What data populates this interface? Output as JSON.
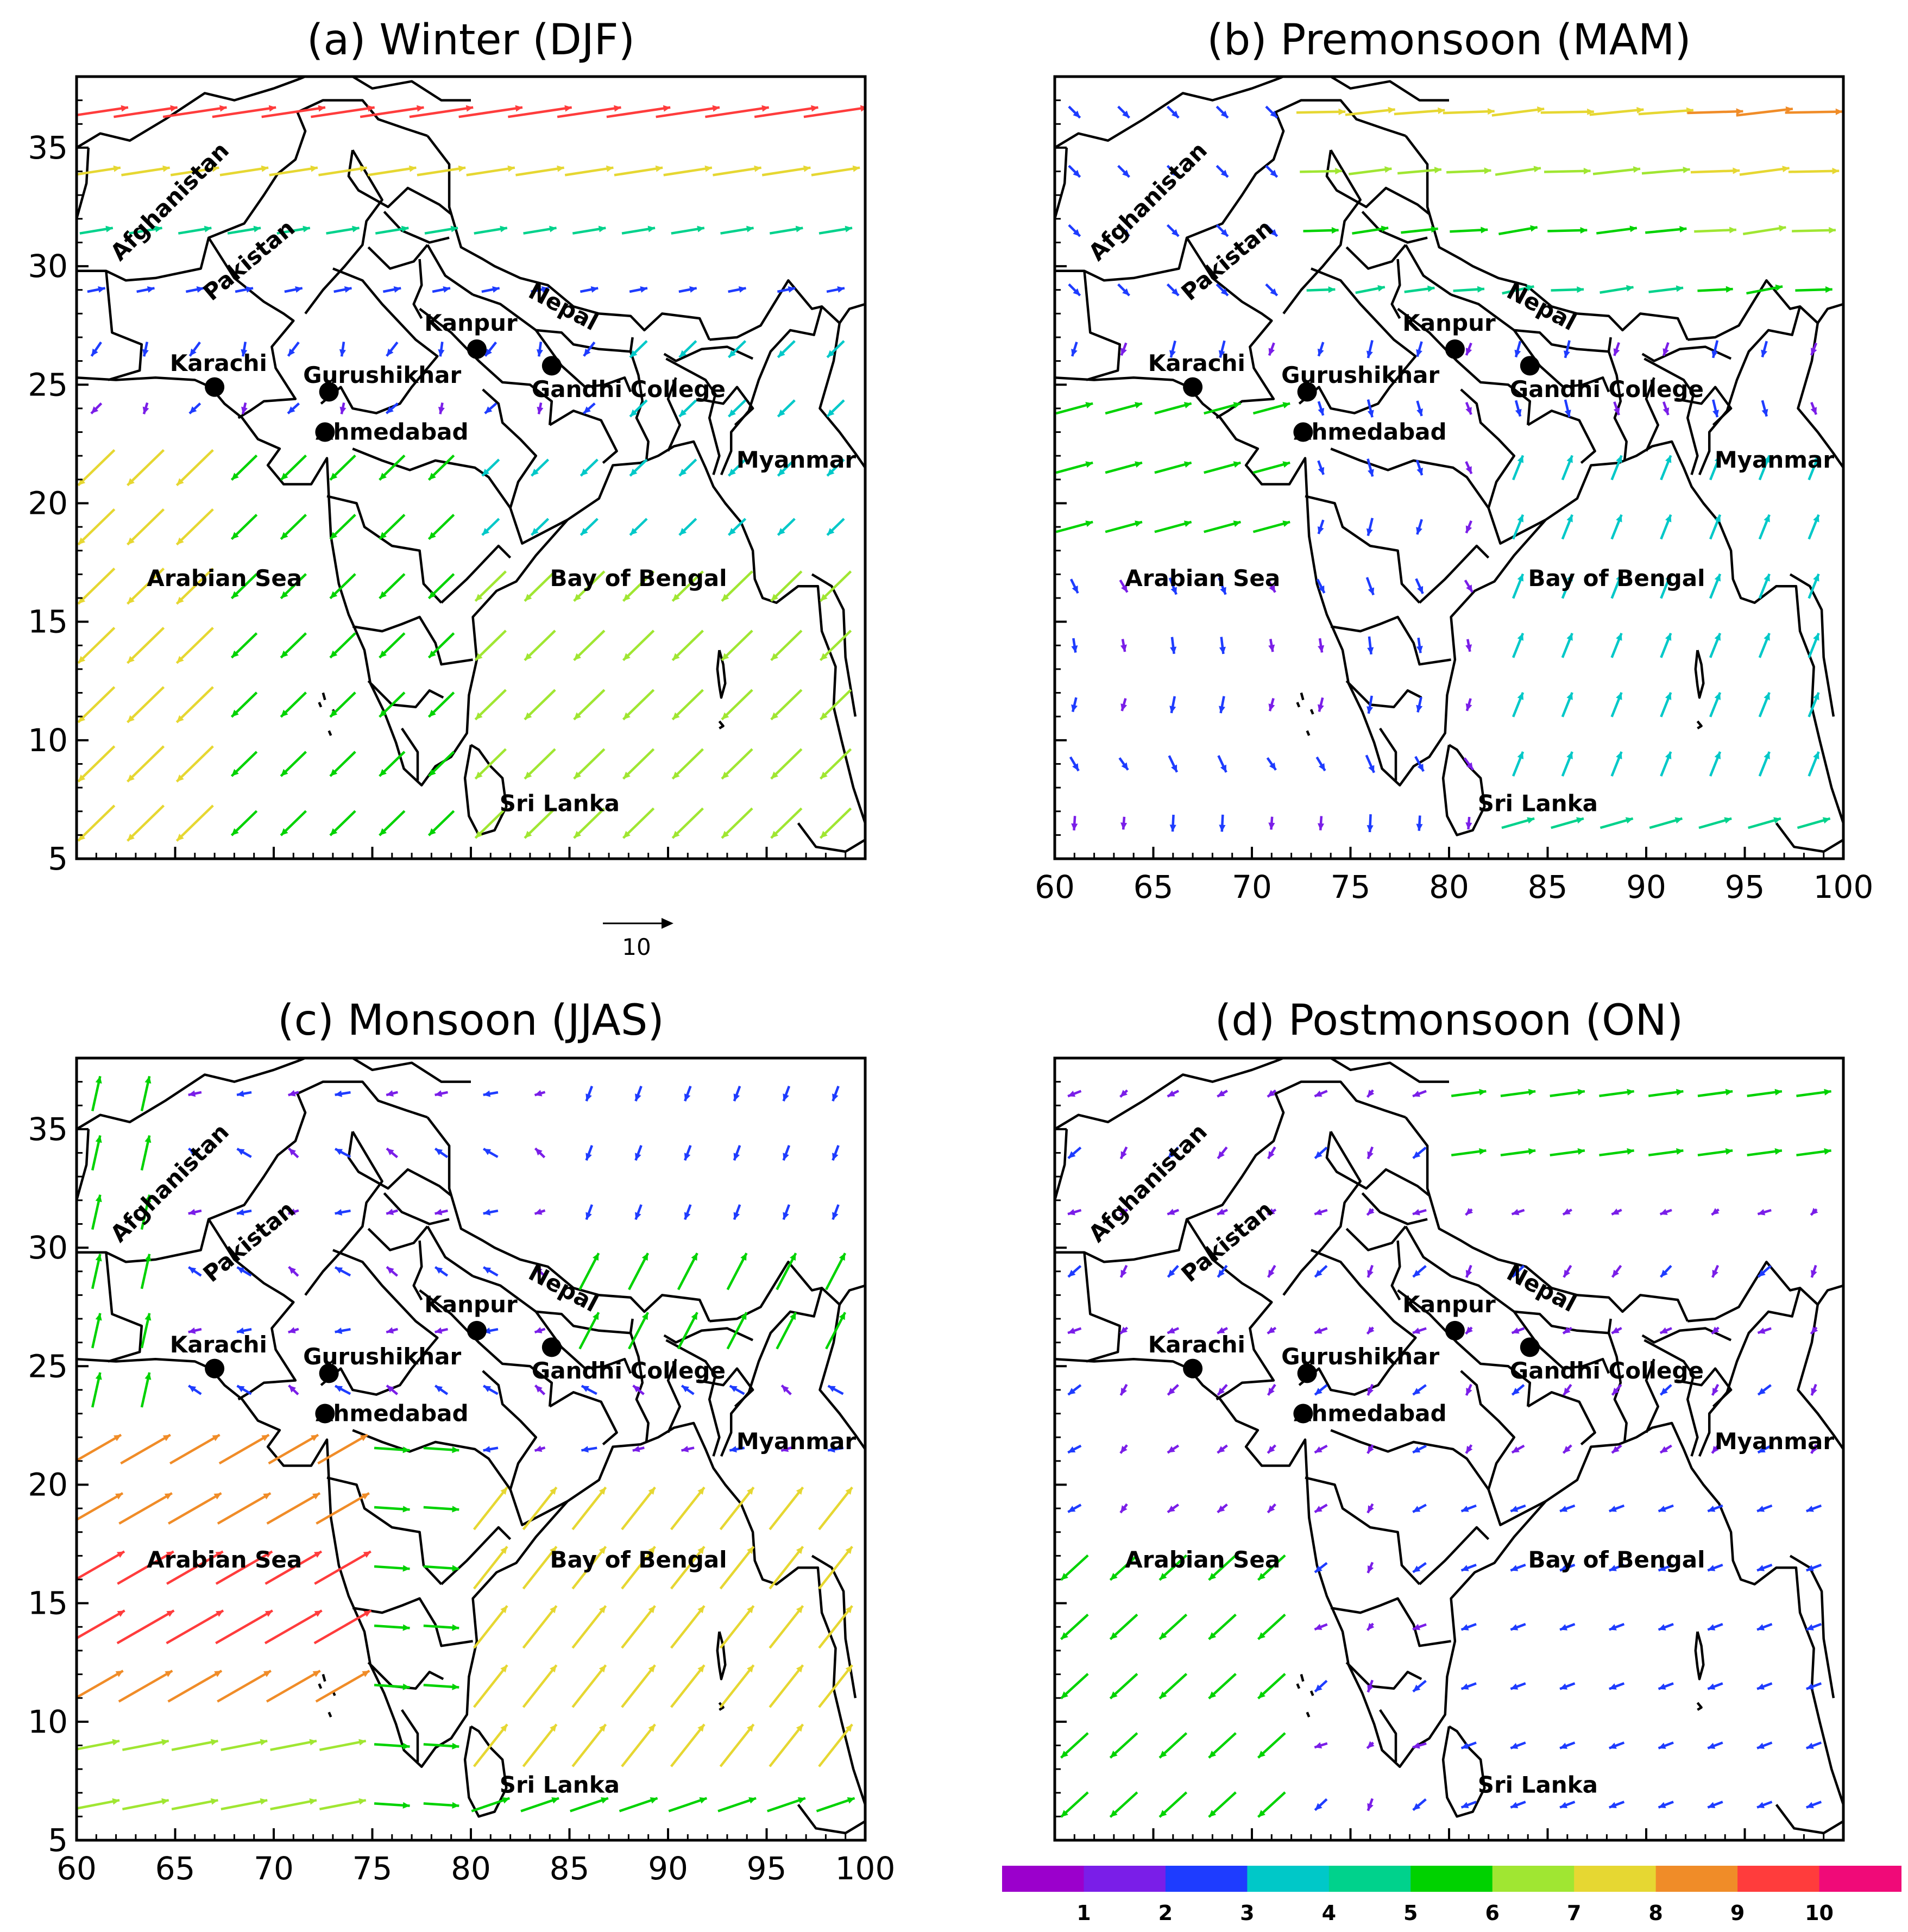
{
  "colors": {
    "land_outline": "#000000",
    "frame": "#000000",
    "background": "#ffffff",
    "wind_scale": [
      "#9b00cc",
      "#7a1ee8",
      "#1e3cff",
      "#00c8c8",
      "#00d28c",
      "#00d200",
      "#a0e632",
      "#e6d732",
      "#f08c28",
      "#ff3c3c",
      "#f00a78"
    ]
  },
  "chart_data": [
    {
      "type": "vector-map",
      "panel": "a",
      "title": "(a) Winter (DJF)",
      "xlim": [
        60,
        100
      ],
      "ylim": [
        5,
        38
      ],
      "xticks": [
        "60",
        "65",
        "70",
        "75",
        "80",
        "85",
        "90",
        "95",
        "100"
      ],
      "yticks": [
        "5",
        "10",
        "15",
        "20",
        "25",
        "30",
        "35"
      ],
      "show_x_tick_labels": false,
      "show_y_tick_labels": true,
      "wind_regime": "winter",
      "reference_vector": {
        "magnitude": 10,
        "label": "10"
      }
    },
    {
      "type": "vector-map",
      "panel": "b",
      "title": "(b) Premonsoon (MAM)",
      "xlim": [
        60,
        100
      ],
      "ylim": [
        5,
        38
      ],
      "xticks": [
        "60",
        "65",
        "70",
        "75",
        "80",
        "85",
        "90",
        "95",
        "100"
      ],
      "yticks": [
        "5",
        "10",
        "15",
        "20",
        "25",
        "30",
        "35"
      ],
      "show_x_tick_labels": true,
      "show_y_tick_labels": false,
      "wind_regime": "premonsoon"
    },
    {
      "type": "vector-map",
      "panel": "c",
      "title": "(c) Monsoon (JJAS)",
      "xlim": [
        60,
        100
      ],
      "ylim": [
        5,
        38
      ],
      "xticks": [
        "60",
        "65",
        "70",
        "75",
        "80",
        "85",
        "90",
        "95",
        "100"
      ],
      "yticks": [
        "5",
        "10",
        "15",
        "20",
        "25",
        "30",
        "35"
      ],
      "show_x_tick_labels": true,
      "show_y_tick_labels": true,
      "wind_regime": "monsoon"
    },
    {
      "type": "vector-map",
      "panel": "d",
      "title": "(d) Postmonsoon (ON)",
      "xlim": [
        60,
        100
      ],
      "ylim": [
        5,
        38
      ],
      "xticks": [
        "60",
        "65",
        "70",
        "75",
        "80",
        "85",
        "90",
        "95",
        "100"
      ],
      "yticks": [
        "5",
        "10",
        "15",
        "20",
        "25",
        "30",
        "35"
      ],
      "show_x_tick_labels": false,
      "show_y_tick_labels": false,
      "wind_regime": "postmonsoon"
    }
  ],
  "map_labels": [
    {
      "text": "Afghanistan",
      "lon": 65.0,
      "lat": 32.5,
      "rotate": -45
    },
    {
      "text": "Pakistan",
      "lon": 69.0,
      "lat": 30.0,
      "rotate": -40
    },
    {
      "text": "Nepal",
      "lon": 84.5,
      "lat": 28.0,
      "rotate": 28
    },
    {
      "text": "Myanmar",
      "lon": 96.5,
      "lat": 21.5,
      "rotate": 0
    },
    {
      "text": "Arabian Sea",
      "lon": 67.5,
      "lat": 16.5,
      "rotate": 0
    },
    {
      "text": "Bay of Bengal",
      "lon": 88.5,
      "lat": 16.5,
      "rotate": 0
    },
    {
      "text": "Sri Lanka",
      "lon": 84.5,
      "lat": 7.0,
      "rotate": 0
    }
  ],
  "stations": [
    {
      "name": "Karachi",
      "lon": 67.0,
      "lat": 24.9,
      "label_lon": 67.2,
      "label_lat": 25.9
    },
    {
      "name": "Gurushikhar",
      "lon": 72.8,
      "lat": 24.7,
      "label_lon": 75.5,
      "label_lat": 25.4
    },
    {
      "name": "Ahmedabad",
      "lon": 72.6,
      "lat": 23.0,
      "label_lon": 76.0,
      "label_lat": 23.0
    },
    {
      "name": "Kanpur",
      "lon": 80.3,
      "lat": 26.5,
      "label_lon": 80.0,
      "label_lat": 27.6
    },
    {
      "name": "Gandhi College",
      "lon": 84.1,
      "lat": 25.8,
      "label_lon": 88.0,
      "label_lat": 24.8
    }
  ],
  "colorbar": {
    "labels": [
      "1",
      "2",
      "3",
      "4",
      "5",
      "6",
      "7",
      "8",
      "9",
      "10"
    ]
  }
}
